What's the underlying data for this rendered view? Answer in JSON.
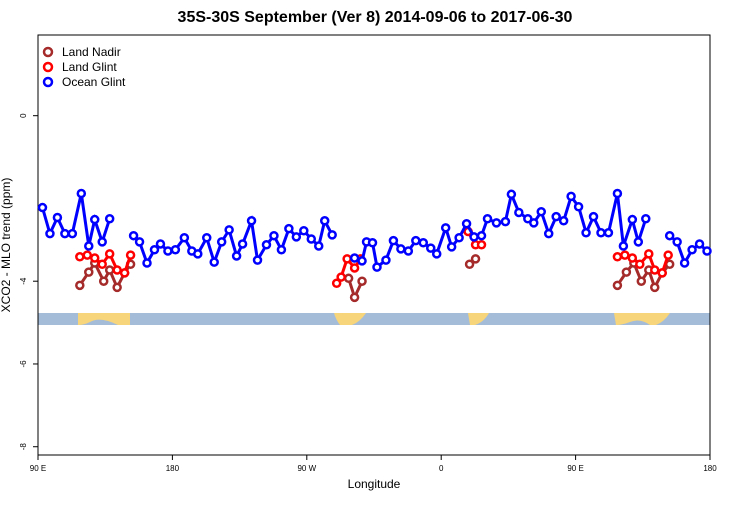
{
  "chart_data": {
    "type": "line",
    "title": "35S-30S September (Ver 8)   2014-09-06 to 2017-06-30",
    "x_label": "Longitude",
    "y_label": "XCO2 - MLO trend (ppm)",
    "xlim": [
      90,
      540
    ],
    "xticks": [
      {
        "value": 90,
        "label": "90 E"
      },
      {
        "value": 180,
        "label": "180"
      },
      {
        "value": 270,
        "label": "90 W"
      },
      {
        "value": 360,
        "label": "0"
      },
      {
        "value": 450,
        "label": "90 E"
      },
      {
        "value": 540,
        "label": "180"
      }
    ],
    "ylim": [
      -8.2,
      1.95
    ],
    "yticks": [
      0,
      -4,
      -6,
      -8
    ],
    "legend": "top-left",
    "series": [
      {
        "name": "Land Nadir",
        "color": "#a52a2a",
        "x": [
          118,
          124,
          128,
          134,
          138,
          143,
          148,
          152,
          null,
          298,
          302,
          307,
          null,
          379,
          383,
          null,
          478,
          484,
          489,
          494,
          499,
          503,
          508,
          513
        ],
        "values": [
          -4.1,
          -3.78,
          -3.56,
          -4.0,
          -3.73,
          -4.15,
          -3.8,
          -3.59,
          null,
          -3.93,
          -4.39,
          -4.0,
          null,
          -3.59,
          -3.46,
          null,
          -4.1,
          -3.78,
          -3.56,
          -4.0,
          -3.73,
          -4.15,
          -3.8,
          -3.59
        ]
      },
      {
        "name": "Land Glint",
        "color": "#ff0000",
        "x": [
          118,
          123,
          128,
          133,
          138,
          143,
          148,
          152,
          null,
          290,
          293,
          297,
          302,
          306,
          null,
          378,
          383,
          387,
          null,
          478,
          483,
          488,
          493,
          499,
          503,
          508,
          512
        ],
        "values": [
          -3.41,
          -3.37,
          -3.44,
          -3.59,
          -3.34,
          -3.73,
          -3.8,
          -3.37,
          null,
          -4.05,
          -3.9,
          -3.46,
          -3.68,
          -3.46,
          null,
          -2.8,
          -3.12,
          -3.12,
          null,
          -3.41,
          -3.37,
          -3.44,
          -3.59,
          -3.34,
          -3.73,
          -3.8,
          -3.37
        ]
      },
      {
        "name": "Ocean Glint",
        "color": "#0000ff",
        "x": [
          93,
          98,
          103,
          108,
          113,
          119,
          124,
          128,
          133,
          138,
          null,
          154,
          158,
          163,
          168,
          172,
          177,
          182,
          188,
          193,
          197,
          203,
          208,
          213,
          218,
          223,
          227,
          233,
          237,
          243,
          248,
          253,
          258,
          263,
          268,
          273,
          278,
          282,
          287,
          null,
          302,
          307,
          310,
          314,
          317,
          323,
          328,
          333,
          338,
          343,
          348,
          353,
          357,
          363,
          367,
          372,
          377,
          382,
          387,
          391,
          397,
          403,
          407,
          412,
          418,
          422,
          427,
          432,
          437,
          442,
          447,
          452,
          457,
          462,
          467,
          472,
          478,
          482,
          488,
          492,
          497,
          null,
          513,
          518,
          523,
          528,
          533,
          538
        ],
        "values": [
          -2.22,
          -2.85,
          -2.46,
          -2.85,
          -2.85,
          -1.88,
          -3.15,
          -2.51,
          -3.05,
          -2.49,
          null,
          -2.9,
          -3.05,
          -3.56,
          -3.24,
          -3.1,
          -3.27,
          -3.24,
          -2.95,
          -3.27,
          -3.34,
          -2.95,
          -3.54,
          -3.05,
          -2.76,
          -3.39,
          -3.1,
          -2.54,
          -3.49,
          -3.12,
          -2.9,
          -3.24,
          -2.73,
          -2.93,
          -2.78,
          -2.98,
          -3.15,
          -2.54,
          -2.88,
          null,
          -3.44,
          -3.51,
          -3.05,
          -3.07,
          -3.66,
          -3.49,
          -3.02,
          -3.22,
          -3.27,
          -3.02,
          -3.07,
          -3.2,
          -3.34,
          -2.71,
          -3.17,
          -2.95,
          -2.61,
          -2.93,
          -2.9,
          -2.49,
          -2.59,
          -2.56,
          -1.9,
          -2.34,
          -2.49,
          -2.59,
          -2.32,
          -2.85,
          -2.44,
          -2.54,
          -1.95,
          -2.2,
          -2.83,
          -2.44,
          -2.83,
          -2.83,
          -1.88,
          -3.15,
          -2.51,
          -3.05,
          -2.49,
          null,
          -2.9,
          -3.05,
          -3.56,
          -3.24,
          -3.1,
          -3.27
        ]
      }
    ]
  }
}
